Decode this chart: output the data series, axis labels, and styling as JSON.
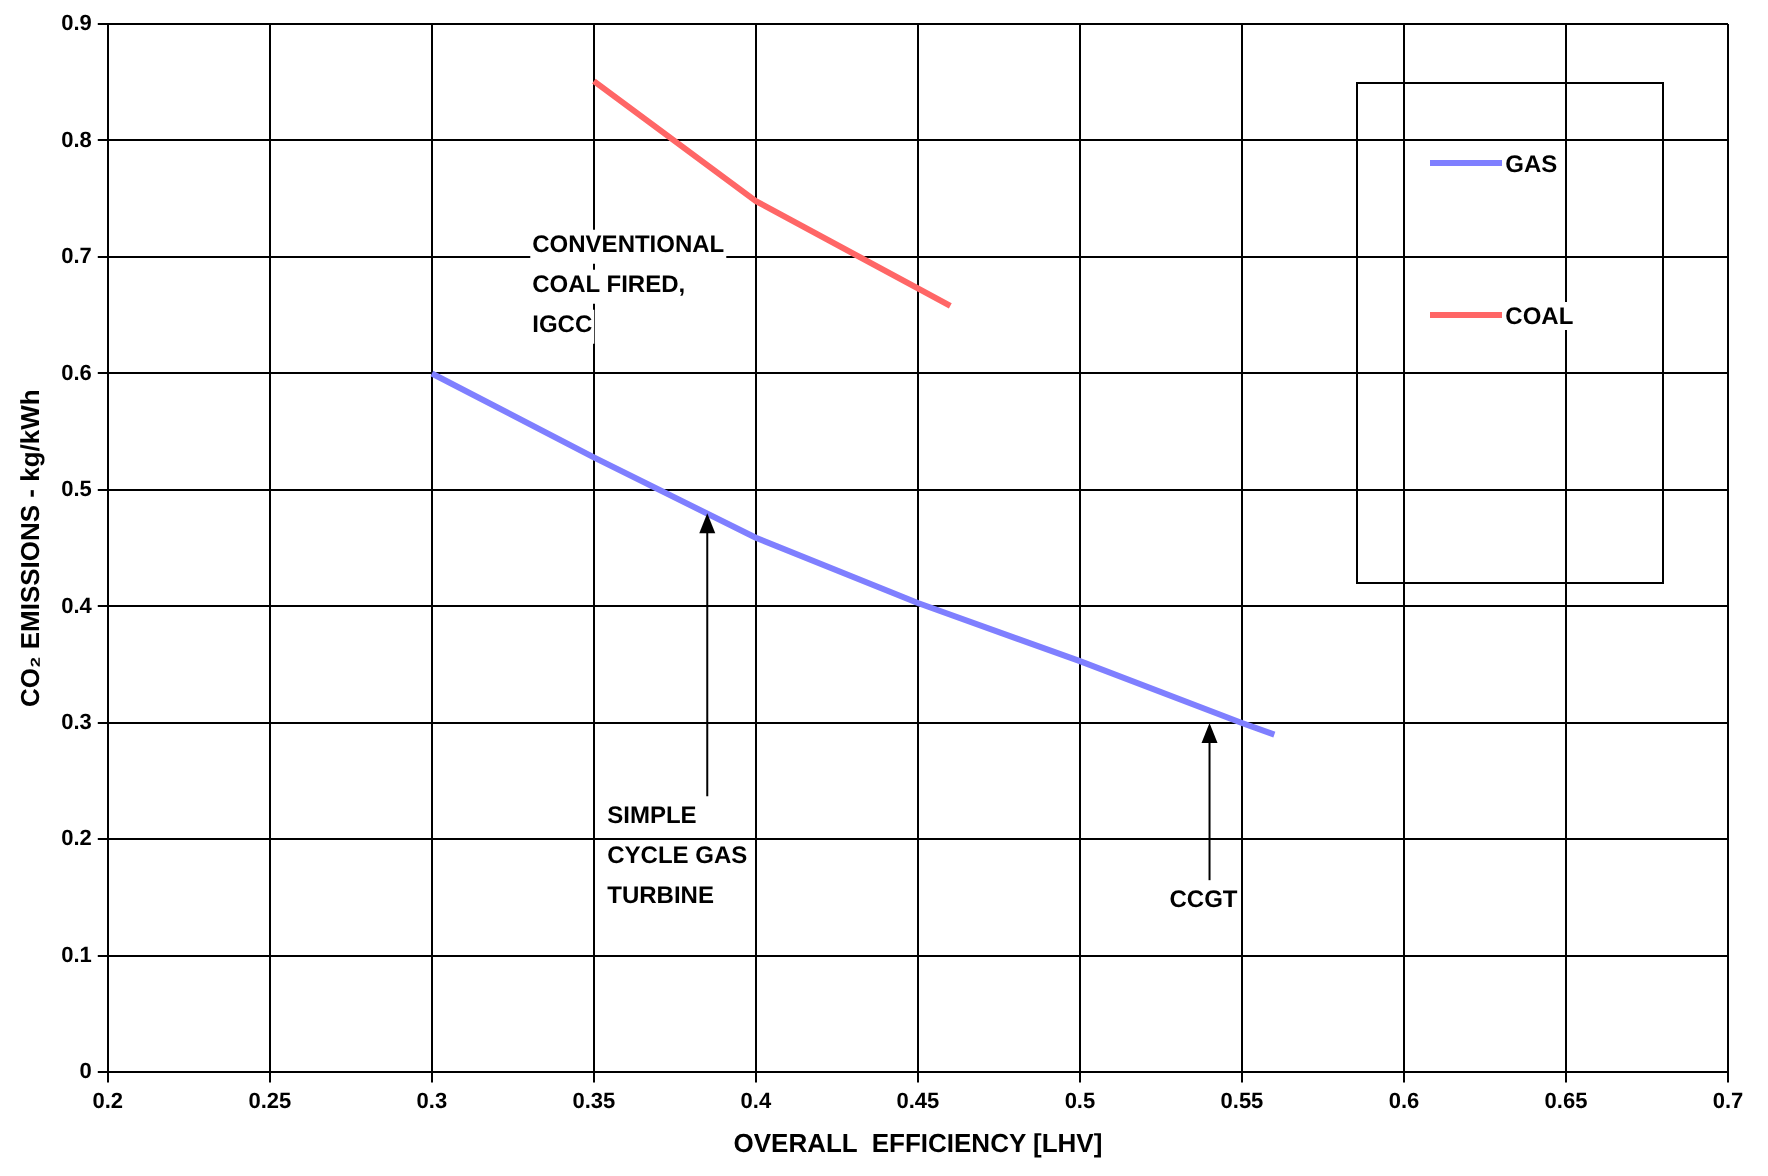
{
  "chart_data": {
    "type": "line",
    "xlabel": "OVERALL  EFFICIENCY [LHV]",
    "ylabel": "CO₂ EMISSIONS - kg/kWh",
    "series": [
      {
        "name": "GAS",
        "color": "#7f7fff",
        "x": [
          0.3,
          0.35,
          0.4,
          0.45,
          0.5,
          0.55,
          0.56
        ],
        "values": [
          0.6,
          0.528,
          0.459,
          0.403,
          0.353,
          0.3,
          0.29
        ]
      },
      {
        "name": "COAL",
        "color": "#ff6666",
        "x": [
          0.35,
          0.4,
          0.45,
          0.46
        ],
        "values": [
          0.851,
          0.748,
          0.673,
          0.658
        ]
      }
    ],
    "xlim": [
      0.2,
      0.7
    ],
    "xticks": [
      0.2,
      0.25,
      0.3,
      0.35,
      0.4,
      0.45,
      0.5,
      0.55,
      0.6,
      0.65,
      0.7
    ],
    "ylim": [
      0,
      0.9
    ],
    "yticks": [
      0,
      0.1,
      0.2,
      0.3,
      0.4,
      0.5,
      0.6,
      0.7,
      0.8,
      0.9
    ],
    "grid": true,
    "legend": "top right",
    "marker": "none",
    "line_style": "solid",
    "annotations": [
      "CONVENTIONAL\nCOAL FIRED,\nIGCC",
      {
        "text": "SIMPLE\nCYCLE GAS\nTURBINE",
        "x": 0.385,
        "y": 0.48
      },
      {
        "text": "CCGT",
        "x": 0.54,
        "y": 0.3
      }
    ]
  }
}
